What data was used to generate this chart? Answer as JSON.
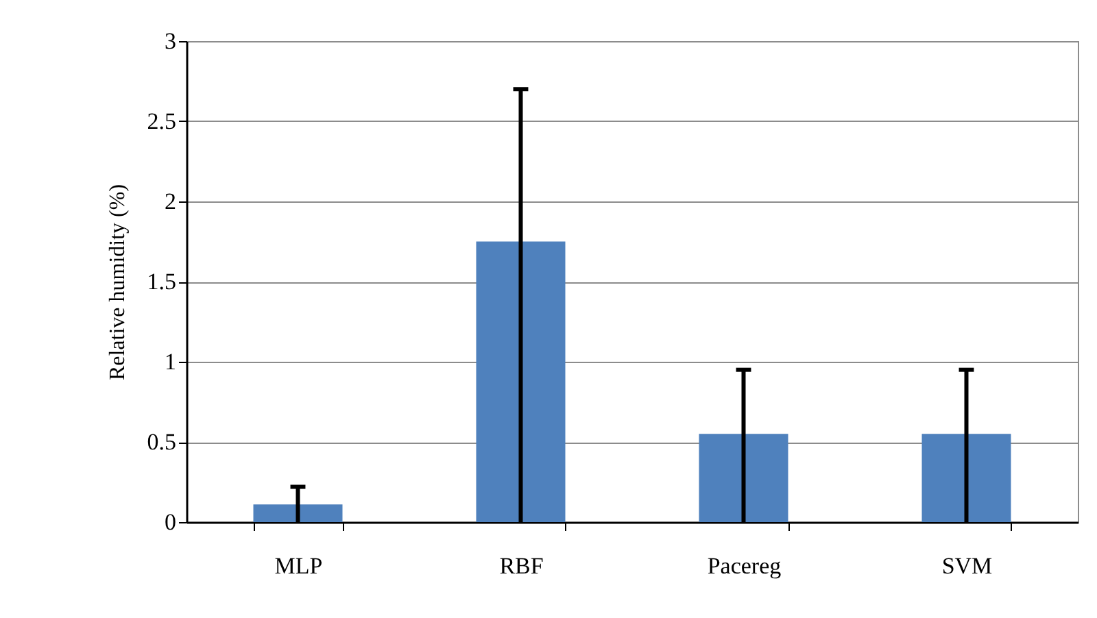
{
  "chart_data": {
    "type": "bar",
    "ylabel": "Relative humidity (%)",
    "categories": [
      "MLP",
      "RBF",
      "Pacereg",
      "SVM"
    ],
    "values": [
      0.11,
      1.75,
      0.55,
      0.55
    ],
    "errors": [
      [
        0,
        0.22
      ],
      [
        0,
        2.7
      ],
      [
        0,
        0.95
      ],
      [
        0,
        0.95
      ]
    ],
    "color": "#4f81bd",
    "ylim": [
      0,
      3
    ],
    "yticks": [
      0,
      0.5,
      1,
      1.5,
      2,
      2.5,
      3
    ],
    "grid": "y"
  }
}
